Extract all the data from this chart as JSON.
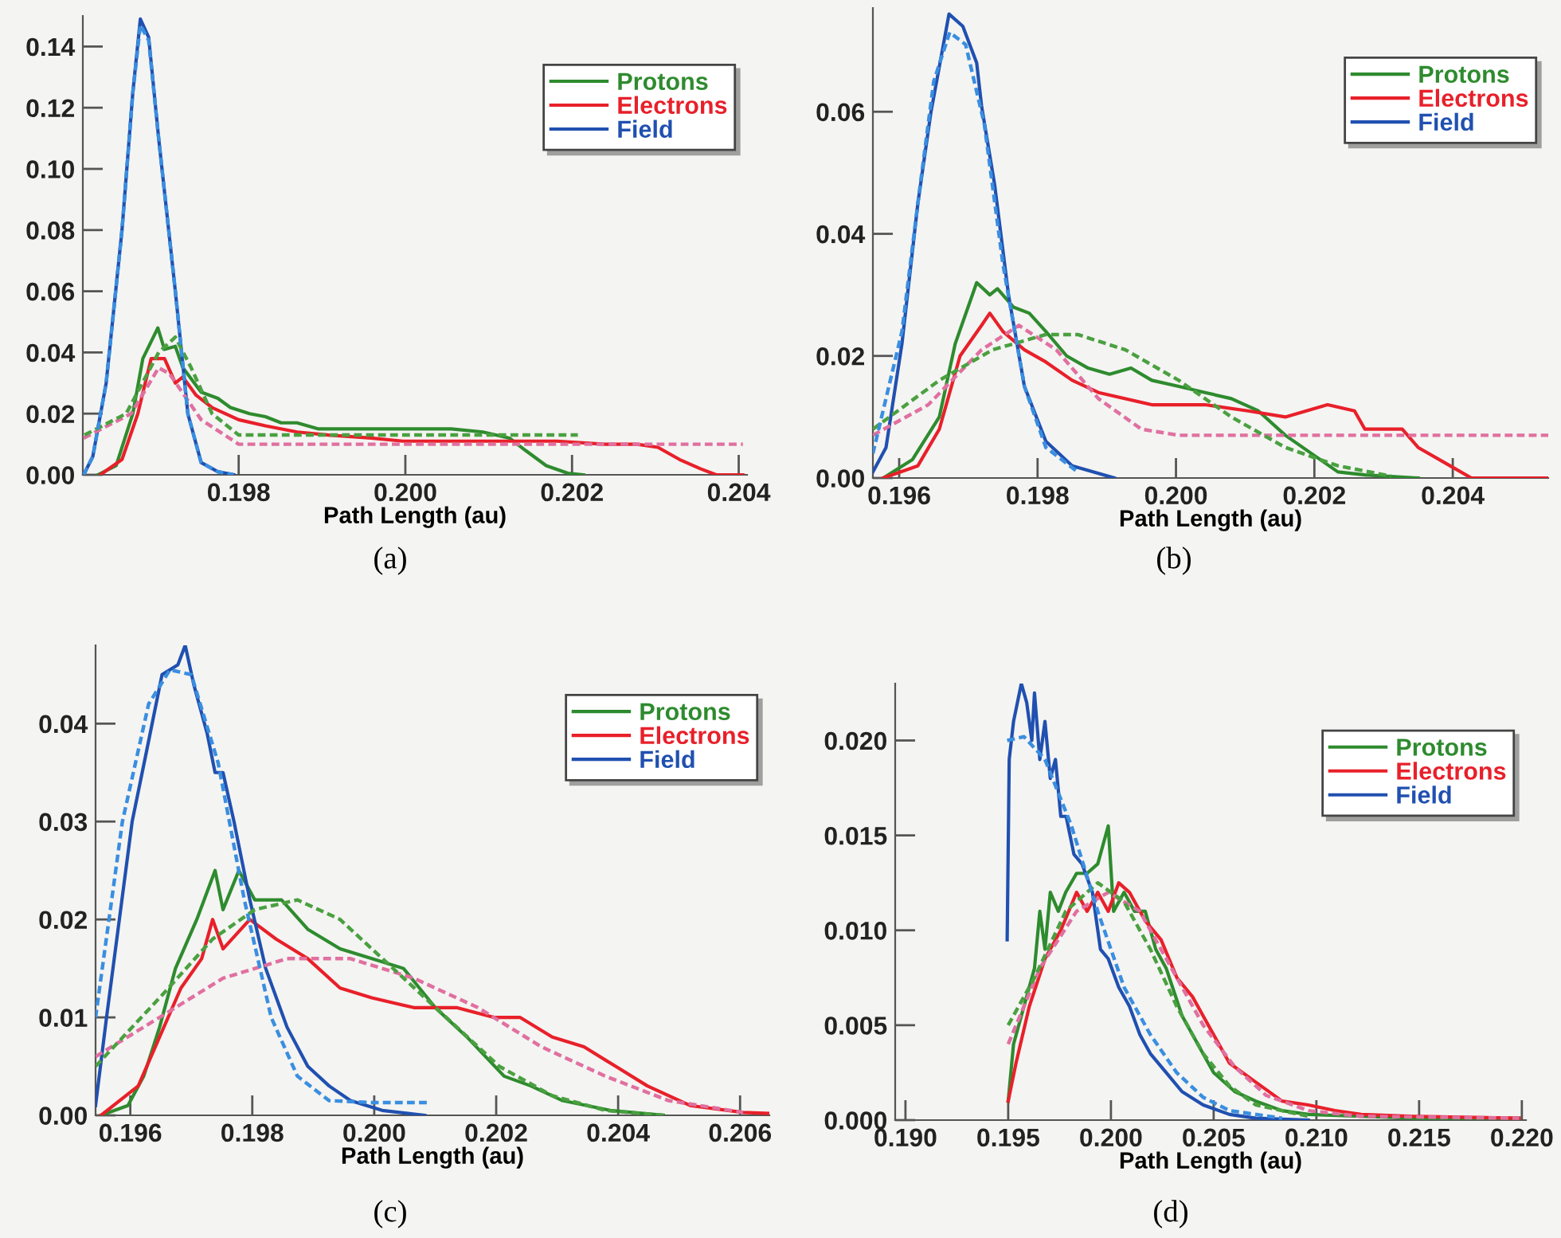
{
  "chart_data": [
    {
      "type": "line",
      "xlabel": "Path Length (au)",
      "annotations": [
        "(a)"
      ],
      "legend": "top right",
      "grid": false,
      "xlim": [
        0.19613,
        0.2041
      ],
      "ylim": [
        0,
        0.15
      ],
      "xticks": [
        0.198,
        {
          "value": 0.2,
          "label": "0.200"
        },
        0.202,
        0.204
      ],
      "yticks": [
        {
          "value": 0,
          "label": "0.00"
        },
        {
          "value": 0.02,
          "label": "0.02"
        },
        {
          "value": 0.04,
          "label": "0.04"
        },
        {
          "value": 0.06,
          "label": "0.06"
        },
        {
          "value": 0.08,
          "label": "0.08"
        },
        {
          "value": 0.1,
          "label": "0.10"
        },
        {
          "value": 0.12,
          "label": "0.12"
        },
        {
          "value": 0.14,
          "label": "0.14"
        }
      ],
      "series": [
        {
          "line_style": "dashed",
          "color": "#e070a0",
          "x": [
            0.19614,
            0.19671,
            0.19704,
            0.19717,
            0.19755,
            0.198,
            0.199,
            0.2,
            0.201,
            0.202,
            0.203,
            0.20405
          ],
          "values": [
            0.012,
            0.02,
            0.035,
            0.033,
            0.018,
            0.01,
            0.01,
            0.01,
            0.01,
            0.01,
            0.01,
            0.01
          ]
        },
        {
          "line_style": "dashed",
          "color": "#4aa040",
          "x": [
            0.19615,
            0.19665,
            0.19704,
            0.19724,
            0.19743,
            0.19768,
            0.198,
            0.199,
            0.2,
            0.201,
            0.20207
          ],
          "values": [
            0.013,
            0.02,
            0.04,
            0.045,
            0.035,
            0.02,
            0.013,
            0.013,
            0.013,
            0.013,
            0.013
          ]
        },
        {
          "line_style": "dashed",
          "color": "#3a8ee0",
          "x": [
            0.19614,
            0.19625,
            0.19641,
            0.1966,
            0.19673,
            0.19682,
            0.19692,
            0.19704,
            0.19724,
            0.19739,
            0.19755,
            0.19775,
            0.19794
          ],
          "values": [
            0,
            0.006,
            0.03,
            0.08,
            0.125,
            0.147,
            0.142,
            0.11,
            0.06,
            0.02,
            0.004,
            0.001,
            0
          ]
        },
        {
          "name": "Protons",
          "color": "#2e8b2e",
          "x": [
            0.19631,
            0.19653,
            0.19673,
            0.19685,
            0.19703,
            0.19711,
            0.19724,
            0.19733,
            0.19755,
            0.19775,
            0.1979,
            0.19813,
            0.19832,
            0.19851,
            0.1987,
            0.19896,
            0.19927,
            0.19959,
            0.19997,
            0.20055,
            0.20093,
            0.20125,
            0.20144,
            0.20169,
            0.20195,
            0.20214
          ],
          "values": [
            0,
            0.003,
            0.02,
            0.038,
            0.048,
            0.041,
            0.042,
            0.035,
            0.027,
            0.025,
            0.022,
            0.02,
            0.019,
            0.017,
            0.017,
            0.015,
            0.015,
            0.015,
            0.015,
            0.015,
            0.014,
            0.012,
            0.008,
            0.003,
            0.0005,
            0
          ]
        },
        {
          "name": "Electrons",
          "color": "#e8202a",
          "x": [
            0.19634,
            0.1966,
            0.19679,
            0.19695,
            0.19711,
            0.19724,
            0.19733,
            0.19749,
            0.19768,
            0.198,
            0.19832,
            0.1987,
            0.19908,
            0.19959,
            0.19997,
            0.20055,
            0.20118,
            0.20182,
            0.20239,
            0.20278,
            0.20303,
            0.20329,
            0.20354,
            0.20373,
            0.20405
          ],
          "values": [
            0,
            0.005,
            0.02,
            0.038,
            0.038,
            0.03,
            0.032,
            0.026,
            0.022,
            0.018,
            0.016,
            0.014,
            0.013,
            0.012,
            0.011,
            0.011,
            0.011,
            0.011,
            0.01,
            0.01,
            0.009,
            0.005,
            0.002,
            0,
            0
          ]
        },
        {
          "name": "Field",
          "color": "#2050b0",
          "x": [
            0.19614,
            0.19625,
            0.19641,
            0.1966,
            0.19673,
            0.19682,
            0.19692,
            0.19704,
            0.19724,
            0.19739,
            0.19755,
            0.19775,
            0.19794
          ],
          "values": [
            0,
            0.006,
            0.03,
            0.08,
            0.125,
            0.149,
            0.143,
            0.11,
            0.06,
            0.02,
            0.004,
            0.001,
            0
          ]
        }
      ]
    },
    {
      "type": "line",
      "xlabel": "Path Length (au)",
      "annotations": [
        "(b)"
      ],
      "legend": "top right",
      "grid": false,
      "xlim": [
        0.19562,
        0.20538
      ],
      "ylim": [
        0,
        0.077
      ],
      "xticks": [
        0.196,
        0.198,
        {
          "value": 0.2,
          "label": "0.200"
        },
        0.202,
        0.204
      ],
      "yticks": [
        {
          "value": 0,
          "label": "0.00"
        },
        {
          "value": 0.02,
          "label": "0.02"
        },
        {
          "value": 0.04,
          "label": "0.04"
        },
        {
          "value": 0.06,
          "label": "0.06"
        }
      ],
      "series": [
        {
          "line_style": "dashed",
          "color": "#e070a0",
          "x": [
            0.19562,
            0.19642,
            0.19719,
            0.19773,
            0.19827,
            0.19888,
            0.1995,
            0.20004,
            0.201,
            0.202,
            0.203,
            0.204,
            0.20538
          ],
          "values": [
            0.007,
            0.012,
            0.021,
            0.025,
            0.021,
            0.013,
            0.008,
            0.007,
            0.007,
            0.007,
            0.007,
            0.007,
            0.007
          ]
        },
        {
          "line_style": "dashed",
          "color": "#4aa040",
          "x": [
            0.19562,
            0.19658,
            0.19735,
            0.19812,
            0.19858,
            0.19927,
            0.20004,
            0.2008,
            0.20158,
            0.20234,
            0.20311
          ],
          "values": [
            0.008,
            0.016,
            0.021,
            0.0235,
            0.0235,
            0.021,
            0.016,
            0.01,
            0.005,
            0.002,
            0.0003
          ]
        },
        {
          "line_style": "dashed",
          "color": "#3a8ee0",
          "x": [
            0.19562,
            0.19604,
            0.19627,
            0.1965,
            0.19673,
            0.19696,
            0.19723,
            0.1975,
            0.19781,
            0.19812,
            0.19858
          ],
          "values": [
            0.004,
            0.024,
            0.045,
            0.065,
            0.073,
            0.071,
            0.058,
            0.035,
            0.015,
            0.005,
            0.001
          ]
        },
        {
          "name": "Protons",
          "color": "#2e8b2e",
          "x": [
            0.19577,
            0.19619,
            0.19658,
            0.19681,
            0.19712,
            0.19731,
            0.19742,
            0.19765,
            0.19788,
            0.19812,
            0.19842,
            0.19873,
            0.19904,
            0.19935,
            0.19965,
            0.20004,
            0.20042,
            0.2008,
            0.20119,
            0.20158,
            0.20196,
            0.20234,
            0.20273,
            0.2035
          ],
          "values": [
            0,
            0.003,
            0.01,
            0.022,
            0.032,
            0.03,
            0.031,
            0.028,
            0.027,
            0.024,
            0.02,
            0.018,
            0.017,
            0.018,
            0.016,
            0.015,
            0.014,
            0.013,
            0.011,
            0.007,
            0.004,
            0.001,
            0.0005,
            0
          ]
        },
        {
          "name": "Electrons",
          "color": "#e8202a",
          "x": [
            0.19577,
            0.19627,
            0.19658,
            0.19688,
            0.19719,
            0.19731,
            0.1975,
            0.19781,
            0.19812,
            0.1985,
            0.19888,
            0.19965,
            0.20042,
            0.20104,
            0.20158,
            0.20219,
            0.20258,
            0.20273,
            0.20327,
            0.2035,
            0.20396,
            0.20427,
            0.20538
          ],
          "values": [
            0,
            0.002,
            0.008,
            0.02,
            0.025,
            0.027,
            0.024,
            0.021,
            0.019,
            0.016,
            0.014,
            0.012,
            0.012,
            0.011,
            0.01,
            0.012,
            0.011,
            0.008,
            0.008,
            0.005,
            0.002,
            0,
            0
          ]
        },
        {
          "name": "Field",
          "color": "#2050b0",
          "x": [
            0.19562,
            0.19581,
            0.19604,
            0.19627,
            0.19646,
            0.19672,
            0.19692,
            0.19712,
            0.19719,
            0.19738,
            0.19758,
            0.19781,
            0.19812,
            0.1985,
            0.19911
          ],
          "values": [
            0.001,
            0.005,
            0.022,
            0.045,
            0.06,
            0.076,
            0.074,
            0.068,
            0.061,
            0.048,
            0.03,
            0.015,
            0.006,
            0.002,
            0
          ]
        }
      ]
    },
    {
      "type": "line",
      "xlabel": "Path Length (au)",
      "annotations": [
        "(c)"
      ],
      "legend": "top right",
      "grid": false,
      "xlim": [
        0.19543,
        0.20648
      ],
      "ylim": [
        0,
        0.048
      ],
      "xticks": [
        0.196,
        0.198,
        {
          "value": 0.2,
          "label": "0.200"
        },
        0.202,
        0.204,
        0.206
      ],
      "yticks": [
        {
          "value": 0,
          "label": "0.00"
        },
        {
          "value": 0.01,
          "label": "0.01"
        },
        {
          "value": 0.02,
          "label": "0.02"
        },
        {
          "value": 0.03,
          "label": "0.03"
        },
        {
          "value": 0.04,
          "label": "0.04"
        }
      ],
      "series": [
        {
          "line_style": "dashed",
          "color": "#e070a0",
          "x": [
            0.19543,
            0.19648,
            0.19752,
            0.19857,
            0.19961,
            0.20065,
            0.2017,
            0.20274,
            0.20379,
            0.20483,
            0.20605
          ],
          "values": [
            0.006,
            0.01,
            0.014,
            0.016,
            0.016,
            0.014,
            0.011,
            0.007,
            0.004,
            0.0015,
            0.0003
          ]
        },
        {
          "line_style": "dashed",
          "color": "#4aa040",
          "x": [
            0.19543,
            0.19648,
            0.19735,
            0.19804,
            0.19874,
            0.19944,
            0.20031,
            0.20118,
            0.20205,
            0.20292,
            0.20379,
            0.20474
          ],
          "values": [
            0.005,
            0.012,
            0.018,
            0.021,
            0.022,
            0.02,
            0.015,
            0.01,
            0.005,
            0.002,
            0.0005,
            0
          ]
        },
        {
          "line_style": "dashed",
          "color": "#3a8ee0",
          "x": [
            0.19543,
            0.19587,
            0.1963,
            0.19665,
            0.197,
            0.19744,
            0.19787,
            0.19831,
            0.19874,
            0.19926,
            0.19996,
            0.20092
          ],
          "values": [
            0.01,
            0.03,
            0.042,
            0.0455,
            0.045,
            0.036,
            0.022,
            0.01,
            0.004,
            0.0015,
            0.0013,
            0.0013
          ]
        },
        {
          "name": "Protons",
          "color": "#2e8b2e",
          "x": [
            0.19552,
            0.19596,
            0.19622,
            0.19648,
            0.19674,
            0.19709,
            0.19739,
            0.19752,
            0.19778,
            0.19804,
            0.19848,
            0.19891,
            0.19944,
            0.19996,
            0.20048,
            0.201,
            0.20152,
            0.20213,
            0.20257,
            0.20309,
            0.20387,
            0.20474
          ],
          "values": [
            0,
            0.001,
            0.004,
            0.009,
            0.015,
            0.02,
            0.025,
            0.021,
            0.025,
            0.022,
            0.022,
            0.019,
            0.017,
            0.016,
            0.015,
            0.011,
            0.008,
            0.004,
            0.003,
            0.0015,
            0.0005,
            0
          ]
        },
        {
          "name": "Electrons",
          "color": "#e8202a",
          "x": [
            0.19552,
            0.19613,
            0.19648,
            0.19683,
            0.19717,
            0.19735,
            0.19752,
            0.19796,
            0.19839,
            0.19891,
            0.19944,
            0.19996,
            0.20065,
            0.20135,
            0.20196,
            0.20239,
            0.20292,
            0.20344,
            0.20396,
            0.20448,
            0.20518,
            0.20605,
            0.20648
          ],
          "values": [
            0,
            0.003,
            0.008,
            0.013,
            0.016,
            0.02,
            0.017,
            0.02,
            0.018,
            0.016,
            0.013,
            0.012,
            0.011,
            0.011,
            0.01,
            0.01,
            0.008,
            0.007,
            0.005,
            0.003,
            0.001,
            0.0003,
            0.0002
          ]
        },
        {
          "name": "Field",
          "color": "#2050b0",
          "x": [
            0.19543,
            0.19561,
            0.19603,
            0.19626,
            0.19652,
            0.19678,
            0.1969,
            0.19704,
            0.19726,
            0.19739,
            0.19752,
            0.1977,
            0.19796,
            0.19822,
            0.19857,
            0.19891,
            0.19926,
            0.19961,
            0.20013,
            0.20083
          ],
          "values": [
            0.001,
            0.01,
            0.03,
            0.037,
            0.045,
            0.046,
            0.048,
            0.044,
            0.039,
            0.035,
            0.035,
            0.03,
            0.022,
            0.015,
            0.009,
            0.005,
            0.003,
            0.0015,
            0.0005,
            0
          ]
        }
      ]
    },
    {
      "type": "line",
      "xlabel": "Path Length (au)",
      "annotations": [
        "(d)"
      ],
      "legend": "top right",
      "grid": false,
      "xlim": [
        0.1895,
        0.2202
      ],
      "ylim": [
        0,
        0.023
      ],
      "xticks": [
        {
          "value": 0.19,
          "label": "0.190"
        },
        0.195,
        {
          "value": 0.2,
          "label": "0.200"
        },
        0.205,
        {
          "value": 0.21,
          "label": "0.210"
        },
        0.215,
        {
          "value": 0.22,
          "label": "0.220"
        }
      ],
      "yticks": [
        {
          "value": 0,
          "label": "0.000"
        },
        0.005,
        {
          "value": 0.01,
          "label": "0.010"
        },
        0.015,
        {
          "value": 0.02,
          "label": "0.020"
        }
      ],
      "series": [
        {
          "line_style": "dashed",
          "color": "#e070a0",
          "x": [
            0.195,
            0.19654,
            0.19833,
            0.19987,
            0.20141,
            0.20295,
            0.20449,
            0.20603,
            0.20756,
            0.20961,
            0.21218,
            0.21987
          ],
          "values": [
            0.004,
            0.008,
            0.011,
            0.012,
            0.011,
            0.008,
            0.005,
            0.0028,
            0.0013,
            0.0005,
            0.0002,
            0.0001
          ]
        },
        {
          "line_style": "dashed",
          "color": "#4aa040",
          "x": [
            0.195,
            0.19628,
            0.1978,
            0.19936,
            0.20064,
            0.20192,
            0.2032,
            0.20449,
            0.20577,
            0.20705,
            0.20961
          ],
          "values": [
            0.005,
            0.0075,
            0.011,
            0.0125,
            0.0115,
            0.009,
            0.006,
            0.0035,
            0.0018,
            0.0008,
            0.0002
          ]
        },
        {
          "line_style": "dashed",
          "color": "#3a8ee0",
          "x": [
            0.19495,
            0.19577,
            0.19679,
            0.19808,
            0.19936,
            0.20064,
            0.20192,
            0.2032,
            0.20449,
            0.20577,
            0.20833
          ],
          "values": [
            0.02,
            0.0202,
            0.019,
            0.0155,
            0.011,
            0.007,
            0.0045,
            0.0025,
            0.0012,
            0.0005,
            0.0001
          ]
        },
        {
          "name": "Protons",
          "color": "#2e8b2e",
          "x": [
            0.195,
            0.19526,
            0.19577,
            0.19628,
            0.19654,
            0.19679,
            0.19705,
            0.19744,
            0.1978,
            0.19833,
            0.19884,
            0.19936,
            0.19987,
            0.20013,
            0.20064,
            0.20115,
            0.20167,
            0.20218,
            0.20269,
            0.20346,
            0.20423,
            0.205,
            0.20603,
            0.20705,
            0.20833,
            0.20961,
            0.21218,
            0.21474,
            0.21987
          ],
          "values": [
            0.001,
            0.004,
            0.006,
            0.008,
            0.011,
            0.009,
            0.012,
            0.011,
            0.012,
            0.013,
            0.013,
            0.0135,
            0.0155,
            0.011,
            0.012,
            0.011,
            0.011,
            0.009,
            0.008,
            0.0055,
            0.004,
            0.0025,
            0.0015,
            0.001,
            0.0005,
            0.0003,
            0.0002,
            0.0001,
            0.0001
          ]
        },
        {
          "name": "Electrons",
          "color": "#e8202a",
          "x": [
            0.195,
            0.19538,
            0.19603,
            0.19679,
            0.19756,
            0.19833,
            0.19884,
            0.19936,
            0.19987,
            0.20038,
            0.2009,
            0.20167,
            0.20244,
            0.20321,
            0.20397,
            0.20474,
            0.20577,
            0.20705,
            0.20833,
            0.20961,
            0.2109,
            0.21218,
            0.21474,
            0.21987
          ],
          "values": [
            0.001,
            0.003,
            0.006,
            0.0085,
            0.01,
            0.012,
            0.011,
            0.012,
            0.011,
            0.0125,
            0.012,
            0.0105,
            0.0095,
            0.0075,
            0.0065,
            0.005,
            0.003,
            0.002,
            0.001,
            0.0008,
            0.0005,
            0.0003,
            0.0002,
            0.0001
          ]
        },
        {
          "name": "Field",
          "color": "#2050b0",
          "x": [
            0.19495,
            0.19505,
            0.19526,
            0.19564,
            0.1959,
            0.19615,
            0.19628,
            0.19654,
            0.19679,
            0.19705,
            0.1973,
            0.19756,
            0.19782,
            0.1982,
            0.19859,
            0.1991,
            0.19949,
            0.19987,
            0.20038,
            0.2009,
            0.20141,
            0.20192,
            0.20269,
            0.20346,
            0.20449,
            0.20577,
            0.20705,
            0.20961
          ],
          "values": [
            0.0095,
            0.019,
            0.021,
            0.023,
            0.022,
            0.02,
            0.0225,
            0.019,
            0.021,
            0.018,
            0.019,
            0.016,
            0.016,
            0.014,
            0.0135,
            0.012,
            0.009,
            0.0085,
            0.007,
            0.006,
            0.0045,
            0.0035,
            0.0025,
            0.0015,
            0.0008,
            0.0003,
            0.0001,
            0
          ]
        }
      ]
    }
  ]
}
